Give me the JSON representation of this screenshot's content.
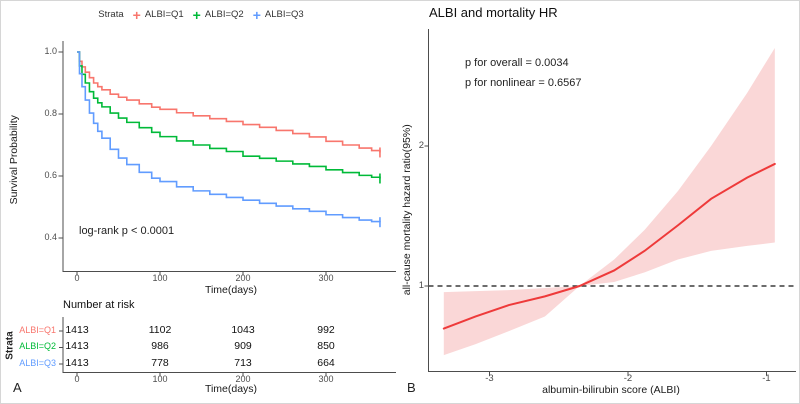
{
  "colors": {
    "q1": "#F8766D",
    "q2": "#00BA38",
    "q3": "#619CFF",
    "spline_line": "#EE3A3A",
    "spline_band": "#FAD7D7",
    "axis": "#4d4d4d",
    "ref_line": "#3c3c3c"
  },
  "panel_a": {
    "panel_label": "A",
    "legend": {
      "title": "Strata",
      "items": [
        {
          "label": "ALBI=Q1",
          "color": "#F8766D"
        },
        {
          "label": "ALBI=Q2",
          "color": "#00BA38"
        },
        {
          "label": "ALBI=Q3",
          "color": "#619CFF"
        }
      ]
    },
    "ylabel": "Survival Probability",
    "xlabel": "Time(days)",
    "yticks": [
      "1.0",
      "0.8",
      "0.6",
      "0.4"
    ],
    "xticks": [
      "0",
      "100",
      "200",
      "300"
    ],
    "logrank": "log-rank  p < 0.0001",
    "risk_table": {
      "title": "Number at risk",
      "side_label": "Strata",
      "xlabel": "Time(days)",
      "xticks": [
        "0",
        "100",
        "200",
        "300"
      ],
      "rows": [
        {
          "label": "ALBI=Q1",
          "color": "#F8766D",
          "values": [
            "1413",
            "1102",
            "1043",
            "992"
          ]
        },
        {
          "label": "ALBI=Q2",
          "color": "#00BA38",
          "values": [
            "1413",
            "986",
            "909",
            "850"
          ]
        },
        {
          "label": "ALBI=Q3",
          "color": "#619CFF",
          "values": [
            "1413",
            "778",
            "713",
            "664"
          ]
        }
      ]
    }
  },
  "panel_b": {
    "panel_label": "B",
    "title": "ALBI and mortality HR",
    "p_overall": "p for overall = 0.0034",
    "p_nonlinear": "p for nonlinear = 0.6567",
    "ylabel": "all-cause mortality hazard ratio(95%)",
    "xlabel": "albumin-bilirubin score (ALBI)",
    "yticks": [
      "2",
      "1"
    ],
    "xticks": [
      "-3",
      "-2",
      "-1"
    ]
  },
  "chart_data": [
    {
      "type": "line",
      "panel": "A",
      "title": "Kaplan-Meier survival by ALBI tertile",
      "xlabel": "Time(days)",
      "ylabel": "Survival Probability",
      "xlim": [
        0,
        365
      ],
      "ylim": [
        0.4,
        1.0
      ],
      "xticks": [
        0,
        100,
        200,
        300
      ],
      "yticks": [
        1.0,
        0.8,
        0.6,
        0.4
      ],
      "grid": false,
      "legend_position": "top",
      "legend_title": "Strata",
      "annotation": "log-rank  p < 0.0001",
      "series": [
        {
          "name": "ALBI=Q1",
          "color": "#F8766D",
          "points": [
            [
              0,
              1.0
            ],
            [
              3,
              0.97
            ],
            [
              6,
              0.952
            ],
            [
              10,
              0.935
            ],
            [
              15,
              0.917
            ],
            [
              20,
              0.9
            ],
            [
              25,
              0.888
            ],
            [
              30,
              0.878
            ],
            [
              40,
              0.864
            ],
            [
              50,
              0.854
            ],
            [
              60,
              0.845
            ],
            [
              75,
              0.833
            ],
            [
              90,
              0.822
            ],
            [
              100,
              0.815
            ],
            [
              120,
              0.804
            ],
            [
              140,
              0.794
            ],
            [
              160,
              0.785
            ],
            [
              180,
              0.776
            ],
            [
              200,
              0.766
            ],
            [
              220,
              0.757
            ],
            [
              240,
              0.747
            ],
            [
              260,
              0.737
            ],
            [
              280,
              0.726
            ],
            [
              300,
              0.712
            ],
            [
              320,
              0.7
            ],
            [
              340,
              0.69
            ],
            [
              355,
              0.682
            ],
            [
              365,
              0.676
            ]
          ]
        },
        {
          "name": "ALBI=Q2",
          "color": "#00BA38",
          "points": [
            [
              0,
              1.0
            ],
            [
              3,
              0.955
            ],
            [
              6,
              0.928
            ],
            [
              10,
              0.9
            ],
            [
              15,
              0.872
            ],
            [
              20,
              0.851
            ],
            [
              25,
              0.836
            ],
            [
              30,
              0.823
            ],
            [
              40,
              0.803
            ],
            [
              50,
              0.787
            ],
            [
              60,
              0.773
            ],
            [
              75,
              0.756
            ],
            [
              90,
              0.741
            ],
            [
              100,
              0.727
            ],
            [
              120,
              0.713
            ],
            [
              140,
              0.7
            ],
            [
              160,
              0.689
            ],
            [
              180,
              0.679
            ],
            [
              200,
              0.664
            ],
            [
              220,
              0.657
            ],
            [
              240,
              0.648
            ],
            [
              260,
              0.639
            ],
            [
              280,
              0.631
            ],
            [
              300,
              0.62
            ],
            [
              320,
              0.611
            ],
            [
              340,
              0.602
            ],
            [
              355,
              0.596
            ],
            [
              365,
              0.592
            ]
          ]
        },
        {
          "name": "ALBI=Q3",
          "color": "#619CFF",
          "points": [
            [
              0,
              1.0
            ],
            [
              3,
              0.93
            ],
            [
              6,
              0.888
            ],
            [
              10,
              0.845
            ],
            [
              15,
              0.803
            ],
            [
              20,
              0.77
            ],
            [
              25,
              0.744
            ],
            [
              30,
              0.722
            ],
            [
              40,
              0.686
            ],
            [
              50,
              0.658
            ],
            [
              60,
              0.637
            ],
            [
              75,
              0.612
            ],
            [
              90,
              0.593
            ],
            [
              100,
              0.582
            ],
            [
              120,
              0.565
            ],
            [
              140,
              0.552
            ],
            [
              160,
              0.541
            ],
            [
              180,
              0.531
            ],
            [
              200,
              0.522
            ],
            [
              220,
              0.512
            ],
            [
              240,
              0.503
            ],
            [
              260,
              0.494
            ],
            [
              280,
              0.486
            ],
            [
              300,
              0.475
            ],
            [
              320,
              0.466
            ],
            [
              340,
              0.458
            ],
            [
              355,
              0.453
            ],
            [
              365,
              0.451
            ]
          ]
        }
      ],
      "number_at_risk": {
        "title": "Number at risk",
        "times": [
          0,
          100,
          200,
          300
        ],
        "rows": [
          {
            "name": "ALBI=Q1",
            "values": [
              1413,
              1102,
              1043,
              992
            ]
          },
          {
            "name": "ALBI=Q2",
            "values": [
              1413,
              986,
              909,
              850
            ]
          },
          {
            "name": "ALBI=Q3",
            "values": [
              1413,
              778,
              713,
              664
            ]
          }
        ]
      }
    },
    {
      "type": "area",
      "panel": "B",
      "title": "ALBI and mortality HR",
      "xlabel": "albumin-bilirubin score (ALBI)",
      "ylabel": "all-cause mortality hazard ratio(95%)",
      "y_scale": "log2",
      "xticks": [
        -3,
        -2,
        -1
      ],
      "yticks": [
        1,
        2
      ],
      "ref_hr": 1.0,
      "p_overall": 0.0034,
      "p_nonlinear": 0.6567,
      "x": [
        -3.33,
        -3.1,
        -2.86,
        -2.6,
        -2.35,
        -2.1,
        -1.88,
        -1.64,
        -1.4,
        -1.14,
        -0.94
      ],
      "hr": [
        0.81,
        0.86,
        0.91,
        0.95,
        1.0,
        1.08,
        1.19,
        1.35,
        1.54,
        1.71,
        1.83
      ],
      "lower": [
        0.71,
        0.75,
        0.8,
        0.86,
        1.0,
        1.02,
        1.07,
        1.14,
        1.19,
        1.22,
        1.24
      ],
      "upper": [
        0.97,
        0.975,
        0.98,
        0.99,
        1.0,
        1.14,
        1.32,
        1.6,
        2.0,
        2.6,
        3.25
      ],
      "line_color": "#EE3A3A",
      "band_color": "#FAD7D7"
    }
  ]
}
